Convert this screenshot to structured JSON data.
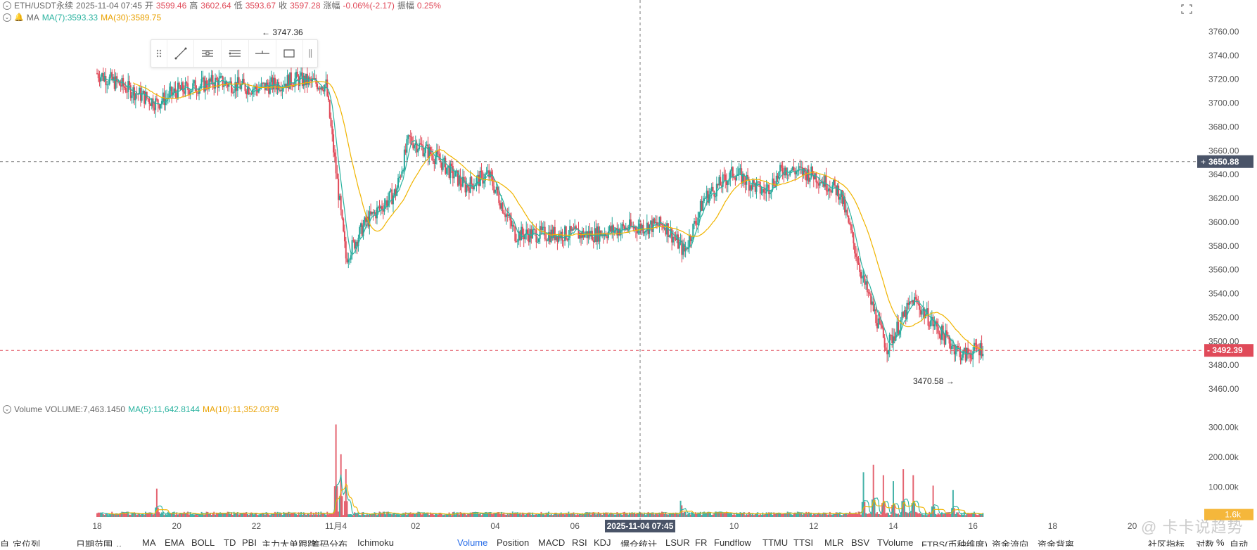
{
  "symbol_bar": {
    "symbol": "ETH/USDT永续",
    "datetime": "2025-11-04 07:45",
    "open_label": "开",
    "open": "3599.46",
    "high_label": "高",
    "high": "3602.64",
    "low_label": "低",
    "low": "3593.67",
    "close_label": "收",
    "close": "3597.28",
    "change_label": "涨幅",
    "change": "-0.06%(-2.17)",
    "amp_label": "振幅",
    "amp": "0.25%"
  },
  "ma_bar": {
    "name": "MA",
    "ma7": "MA(7):3593.33",
    "ma30": "MA(30):3589.75"
  },
  "volume_bar": {
    "name": "Volume",
    "volume": "VOLUME:7,463.1450",
    "ma5": "MA(5):11,642.8144",
    "ma10": "MA(10):11,352.0379"
  },
  "annotations": {
    "high_marker": "← 3747.36",
    "low_marker": "3470.58 →"
  },
  "price_axis": {
    "ticks": [
      "3760.00",
      "3740.00",
      "3720.00",
      "3700.00",
      "3680.00",
      "3660.00",
      "3640.00",
      "3620.00",
      "3600.00",
      "3580.00",
      "3560.00",
      "3540.00",
      "3520.00",
      "3500.00",
      "3480.00",
      "3460.00"
    ],
    "crosshair_price": "3650.88",
    "last_price": "3492.39"
  },
  "volume_axis": {
    "ticks": [
      "300.00k",
      "200.00k",
      "100.00k"
    ],
    "last_volume": "1.6k"
  },
  "time_axis": {
    "ticks": [
      "18",
      "20",
      "22",
      "11月4",
      "02",
      "04",
      "06",
      "08",
      "10",
      "12",
      "14",
      "16",
      "18",
      "20"
    ],
    "crosshair_time": "2025-11-04 07:45"
  },
  "bottom_bar": {
    "items": [
      "自",
      "定位列",
      "日期范围 ⌄",
      "MA",
      "EMA",
      "BOLL",
      "TD",
      "PBI",
      "主力大单跟踪",
      "筹码分布",
      "Ichimoku",
      "Volume",
      "Position",
      "MACD",
      "RSI",
      "KDJ",
      "爆仓统计",
      "LSUR",
      "FR",
      "Fundflow",
      "TTMU",
      "TTSI",
      "MLR",
      "BSV",
      "TVolume",
      "FTBS(币种维度)",
      "资金流向",
      "资金背离",
      "社区指标",
      "对数",
      "%",
      "自动"
    ]
  },
  "watermark": "@ 卡卡说趋势",
  "colors": {
    "up": "#26a69a",
    "down": "#e04a59",
    "ma_fast": "#2bb3a0",
    "ma_slow": "#f0b400",
    "crosshair_tag": "#4a5468",
    "last_price_tag": "#e04a59",
    "volume_tag": "#f5b73b"
  },
  "icons": {
    "draw_toolbar": [
      "grip-icon",
      "trend-line-icon",
      "parallel-channel-icon",
      "multi-line-icon",
      "horizontal-ray-icon",
      "rectangle-icon",
      "more-icon"
    ],
    "corner": "fullscreen-icon"
  },
  "chart_data": {
    "type": "candlestick",
    "interval_minutes": 45,
    "price_ylim": [
      3450,
      3770
    ],
    "volume_ylim": [
      0,
      330000
    ],
    "anchors": [
      {
        "date": "10-18 00:00",
        "price": 3725
      },
      {
        "date": "10-19 12:00",
        "price": 3700
      },
      {
        "date": "10-20 00:00",
        "price": 3710
      },
      {
        "date": "10-21 00:00",
        "price": 3718
      },
      {
        "date": "10-22 00:00",
        "price": 3712
      },
      {
        "date": "10-23 00:00",
        "price": 3720
      },
      {
        "date": "10-23 18:00",
        "price": 3715
      },
      {
        "date": "10-24 06:00",
        "price": 3570
      },
      {
        "date": "10-24 18:00",
        "price": 3600
      },
      {
        "date": "10-25 12:00",
        "price": 3625
      },
      {
        "date": "10-25 20:00",
        "price": 3670
      },
      {
        "date": "10-26 12:00",
        "price": 3655
      },
      {
        "date": "10-27 06:00",
        "price": 3630
      },
      {
        "date": "10-27 20:00",
        "price": 3640
      },
      {
        "date": "10-28 12:00",
        "price": 3590
      },
      {
        "date": "10-29 12:00",
        "price": 3590
      },
      {
        "date": "10-30 12:00",
        "price": 3590
      },
      {
        "date": "10-31 06:00",
        "price": 3595
      },
      {
        "date": "11-01 06:00",
        "price": 3598
      },
      {
        "date": "11-01 18:00",
        "price": 3575
      },
      {
        "date": "11-02 06:00",
        "price": 3620
      },
      {
        "date": "11-03 00:00",
        "price": 3642
      },
      {
        "date": "11-03 18:00",
        "price": 3625
      },
      {
        "date": "11-04 06:00",
        "price": 3645
      },
      {
        "date": "11-05 00:00",
        "price": 3640
      },
      {
        "date": "11-05 16:00",
        "price": 3625
      },
      {
        "date": "11-06 06:00",
        "price": 3550
      },
      {
        "date": "11-06 20:00",
        "price": 3495
      },
      {
        "date": "11-07 12:00",
        "price": 3535
      },
      {
        "date": "11-08 06:00",
        "price": 3505
      },
      {
        "date": "11-08 18:00",
        "price": 3488
      },
      {
        "date": "11-09 06:00",
        "price": 3495
      }
    ],
    "volume_base": 12000,
    "volume_spikes": [
      {
        "date": "10-19 12:00",
        "value": 95000
      },
      {
        "date": "10-24 00:00",
        "value": 310000
      },
      {
        "date": "10-24 03:00",
        "value": 210000
      },
      {
        "date": "10-24 06:00",
        "value": 160000
      },
      {
        "date": "11-01 16:00",
        "value": 70000
      },
      {
        "date": "11-06 06:00",
        "value": 150000
      },
      {
        "date": "11-06 12:00",
        "value": 175000
      },
      {
        "date": "11-06 18:00",
        "value": 140000
      },
      {
        "date": "11-07 00:00",
        "value": 120000
      },
      {
        "date": "11-07 06:00",
        "value": 160000
      },
      {
        "date": "11-07 12:00",
        "value": 140000
      },
      {
        "date": "11-08 00:00",
        "value": 105000
      },
      {
        "date": "11-08 12:00",
        "value": 90000
      }
    ],
    "ma_periods": {
      "price": [
        7,
        30
      ],
      "volume": [
        5,
        10
      ]
    },
    "series_labels": [
      "MA(7)",
      "MA(30)",
      "MA(5)",
      "MA(10)"
    ]
  }
}
